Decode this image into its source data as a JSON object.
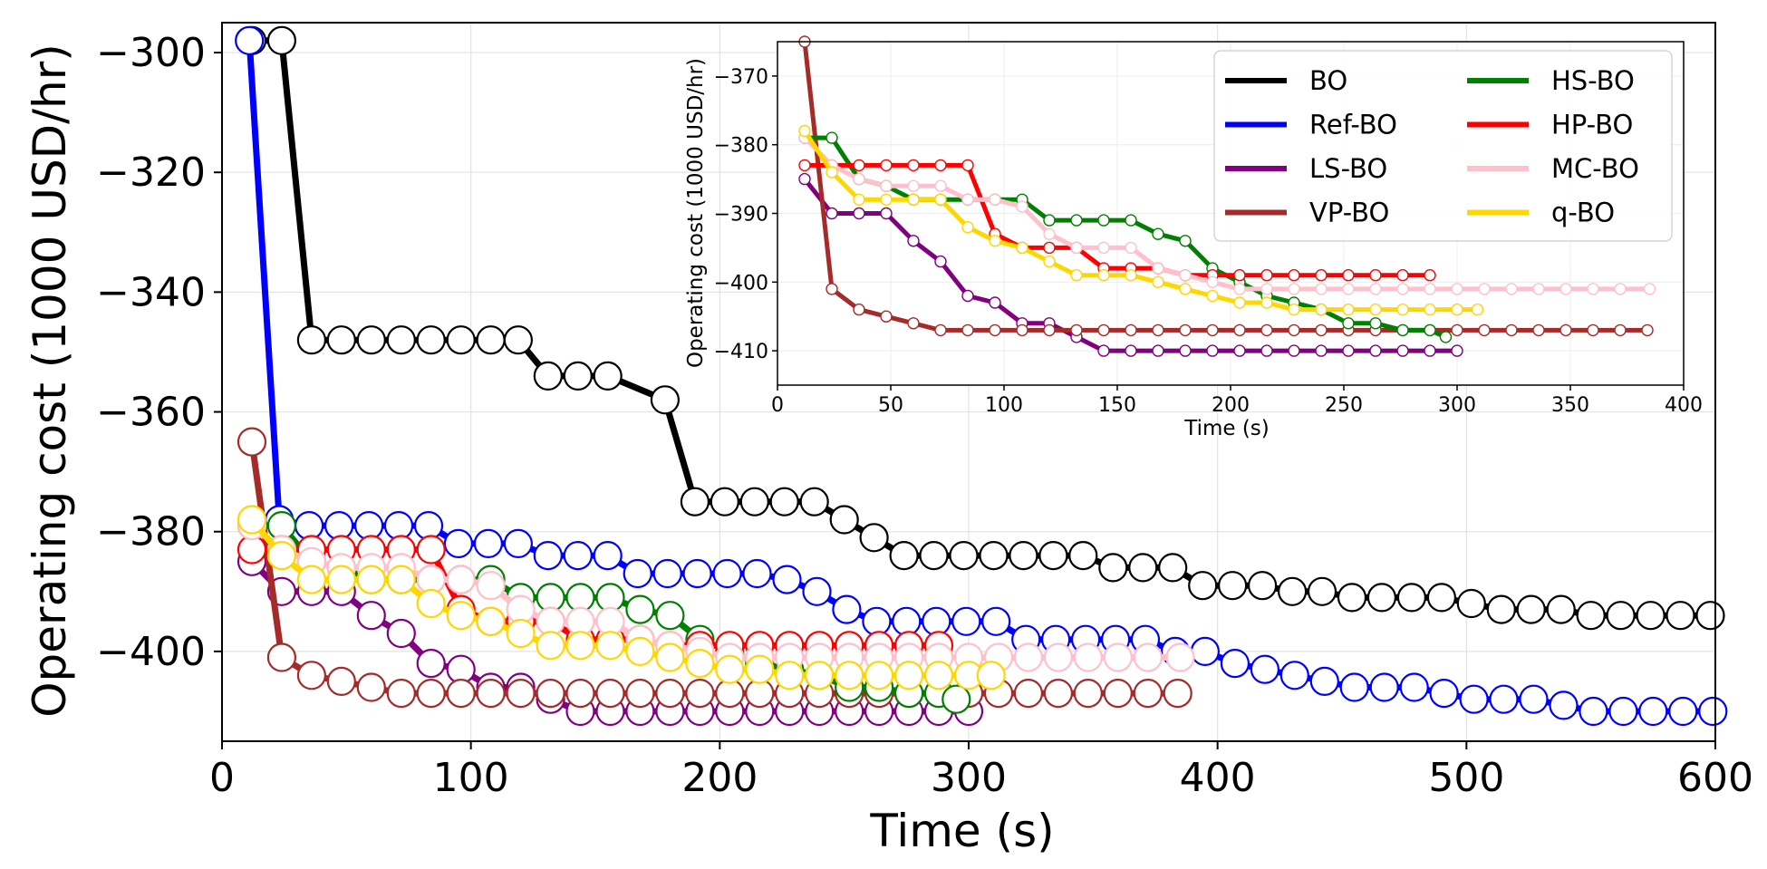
{
  "colors": {
    "BO": "#000000",
    "Ref-BO": "#0000ff",
    "LS-BO": "#800080",
    "VP-BO": "#a52a2a",
    "HS-BO": "#008000",
    "HP-BO": "#ff0000",
    "MC-BO": "#ffc0cb",
    "q-BO": "#ffd700"
  },
  "chart_data": [
    {
      "type": "line",
      "title": "",
      "xlabel": "Time (s)",
      "ylabel": "Operating cost (1000 USD/hr)",
      "xlim": [
        0,
        600
      ],
      "ylim": [
        -415,
        -295
      ],
      "xticks": [
        0,
        100,
        200,
        300,
        400,
        500,
        600
      ],
      "xtick_labels": [
        "0",
        "100",
        "200",
        "300",
        "400",
        "500",
        "600"
      ],
      "yticks": [
        -400,
        -380,
        -360,
        -340,
        -320,
        -300
      ],
      "ytick_labels": [
        "−400",
        "−380",
        "−360",
        "−340",
        "−320",
        "−300"
      ],
      "grid": true,
      "markers": "open circles",
      "series": [
        {
          "name": "BO",
          "x": [
            12,
            24,
            36,
            48,
            60,
            72,
            84,
            96,
            108,
            119,
            131,
            143,
            155,
            178,
            190,
            202,
            214,
            226,
            238,
            250,
            262,
            274,
            286,
            298,
            310,
            322,
            334,
            346,
            358,
            370,
            382,
            394,
            406,
            418,
            430,
            442,
            454,
            466,
            478,
            490,
            502,
            514,
            526,
            538,
            550,
            562,
            574,
            586,
            598
          ],
          "y": [
            -298,
            -298,
            -348,
            -348,
            -348,
            -348,
            -348,
            -348,
            -348,
            -348,
            -354,
            -354,
            -354,
            -358,
            -375,
            -375,
            -375,
            -375,
            -375,
            -378,
            -381,
            -384,
            -384,
            -384,
            -384,
            -384,
            -384,
            -384,
            -386,
            -386,
            -386,
            -389,
            -389,
            -389,
            -390,
            -390,
            -391,
            -391,
            -391,
            -391,
            -392,
            -393,
            -393,
            -393,
            -394,
            -394,
            -394,
            -394,
            -394
          ]
        },
        {
          "name": "Ref-BO",
          "x": [
            11,
            23,
            35,
            47,
            59,
            71,
            83,
            95,
            107,
            119,
            131,
            143,
            155,
            167,
            179,
            191,
            203,
            215,
            227,
            239,
            251,
            263,
            275,
            287,
            299,
            311,
            323,
            335,
            347,
            359,
            371,
            383,
            395,
            407,
            419,
            431,
            443,
            455,
            467,
            479,
            491,
            503,
            515,
            527,
            539,
            551,
            563,
            575,
            587,
            599
          ],
          "y": [
            -298,
            -378,
            -379,
            -379,
            -379,
            -379,
            -379,
            -382,
            -382,
            -382,
            -384,
            -384,
            -384,
            -387,
            -387,
            -387,
            -387,
            -387,
            -388,
            -390,
            -393,
            -395,
            -395,
            -395,
            -395,
            -395,
            -398,
            -398,
            -398,
            -398,
            -398,
            -400,
            -400,
            -402,
            -403,
            -404,
            -405,
            -406,
            -406,
            -406,
            -407,
            -408,
            -408,
            -408,
            -409,
            -410,
            -410,
            -410,
            -410,
            -410
          ]
        },
        {
          "name": "LS-BO",
          "x": [
            12,
            24,
            36,
            48,
            60,
            72,
            84,
            96,
            108,
            120,
            132,
            144,
            156,
            168,
            180,
            192,
            204,
            216,
            228,
            240,
            252,
            264,
            276,
            288,
            300
          ],
          "y": [
            -385,
            -390,
            -390,
            -390,
            -394,
            -397,
            -402,
            -403,
            -406,
            -406,
            -408,
            -410,
            -410,
            -410,
            -410,
            -410,
            -410,
            -410,
            -410,
            -410,
            -410,
            -410,
            -410,
            -410,
            -410
          ]
        },
        {
          "name": "VP-BO",
          "x": [
            12,
            24,
            36,
            48,
            60,
            72,
            84,
            96,
            108,
            120,
            132,
            144,
            156,
            168,
            180,
            192,
            204,
            216,
            228,
            240,
            252,
            264,
            276,
            288,
            300,
            312,
            324,
            336,
            348,
            360,
            372,
            384
          ],
          "y": [
            -365,
            -401,
            -404,
            -405,
            -406,
            -407,
            -407,
            -407,
            -407,
            -407,
            -407,
            -407,
            -407,
            -407,
            -407,
            -407,
            -407,
            -407,
            -407,
            -407,
            -407,
            -407,
            -407,
            -407,
            -407,
            -407,
            -407,
            -407,
            -407,
            -407,
            -407,
            -407
          ]
        },
        {
          "name": "HS-BO",
          "x": [
            12,
            24,
            36,
            48,
            60,
            72,
            84,
            96,
            108,
            120,
            132,
            144,
            156,
            168,
            180,
            192,
            204,
            216,
            228,
            240,
            252,
            264,
            276,
            288,
            295
          ],
          "y": [
            -379,
            -379,
            -385,
            -386,
            -388,
            -388,
            -388,
            -388,
            -388,
            -391,
            -391,
            -391,
            -391,
            -393,
            -394,
            -398,
            -400,
            -402,
            -403,
            -404,
            -406,
            -406,
            -407,
            -407,
            -408
          ]
        },
        {
          "name": "HP-BO",
          "x": [
            12,
            24,
            36,
            48,
            60,
            72,
            84,
            96,
            108,
            120,
            132,
            144,
            156,
            168,
            180,
            192,
            204,
            216,
            228,
            240,
            252,
            264,
            276,
            288
          ],
          "y": [
            -383,
            -383,
            -383,
            -383,
            -383,
            -383,
            -383,
            -393,
            -395,
            -395,
            -395,
            -398,
            -398,
            -398,
            -399,
            -399,
            -399,
            -399,
            -399,
            -399,
            -399,
            -399,
            -399,
            -399
          ]
        },
        {
          "name": "MC-BO",
          "x": [
            12,
            24,
            36,
            48,
            60,
            72,
            84,
            96,
            108,
            120,
            132,
            144,
            156,
            168,
            180,
            192,
            204,
            216,
            228,
            240,
            252,
            264,
            276,
            288,
            300,
            312,
            324,
            336,
            348,
            360,
            372,
            385
          ],
          "y": [
            -379,
            -383,
            -385,
            -386,
            -386,
            -386,
            -388,
            -388,
            -389,
            -393,
            -395,
            -395,
            -395,
            -398,
            -399,
            -400,
            -401,
            -401,
            -401,
            -401,
            -401,
            -401,
            -401,
            -401,
            -401,
            -401,
            -401,
            -401,
            -401,
            -401,
            -401,
            -401
          ]
        },
        {
          "name": "q-BO",
          "x": [
            12,
            24,
            36,
            48,
            60,
            72,
            84,
            96,
            108,
            120,
            132,
            144,
            156,
            168,
            180,
            192,
            204,
            216,
            228,
            240,
            252,
            264,
            276,
            288,
            300,
            309
          ],
          "y": [
            -378,
            -384,
            -388,
            -388,
            -388,
            -388,
            -392,
            -394,
            -395,
            -397,
            -399,
            -399,
            -399,
            -400,
            -401,
            -402,
            -403,
            -403,
            -404,
            -404,
            -404,
            -404,
            -404,
            -404,
            -404,
            -404
          ]
        }
      ]
    },
    {
      "type": "line",
      "title": "",
      "xlabel": "Time (s)",
      "ylabel": "Operating cost (1000 USD/hr)",
      "xlim": [
        0,
        400
      ],
      "ylim": [
        -415,
        -365
      ],
      "xticks": [
        0,
        50,
        100,
        150,
        200,
        250,
        300,
        350,
        400
      ],
      "xtick_labels": [
        "0",
        "50",
        "100",
        "150",
        "200",
        "250",
        "300",
        "350",
        "400"
      ],
      "yticks": [
        -410,
        -400,
        -390,
        -380,
        -370
      ],
      "ytick_labels": [
        "−410",
        "−400",
        "−390",
        "−380",
        "−370"
      ],
      "grid": true,
      "markers": "small white-filled circles",
      "legend_position": "top-right",
      "legend_columns": 2,
      "legend": [
        "BO",
        "Ref-BO",
        "LS-BO",
        "VP-BO",
        "HS-BO",
        "HP-BO",
        "MC-BO",
        "q-BO"
      ],
      "series_names": [
        "LS-BO",
        "VP-BO",
        "HS-BO",
        "HP-BO",
        "MC-BO",
        "q-BO"
      ],
      "note": ""
    }
  ]
}
